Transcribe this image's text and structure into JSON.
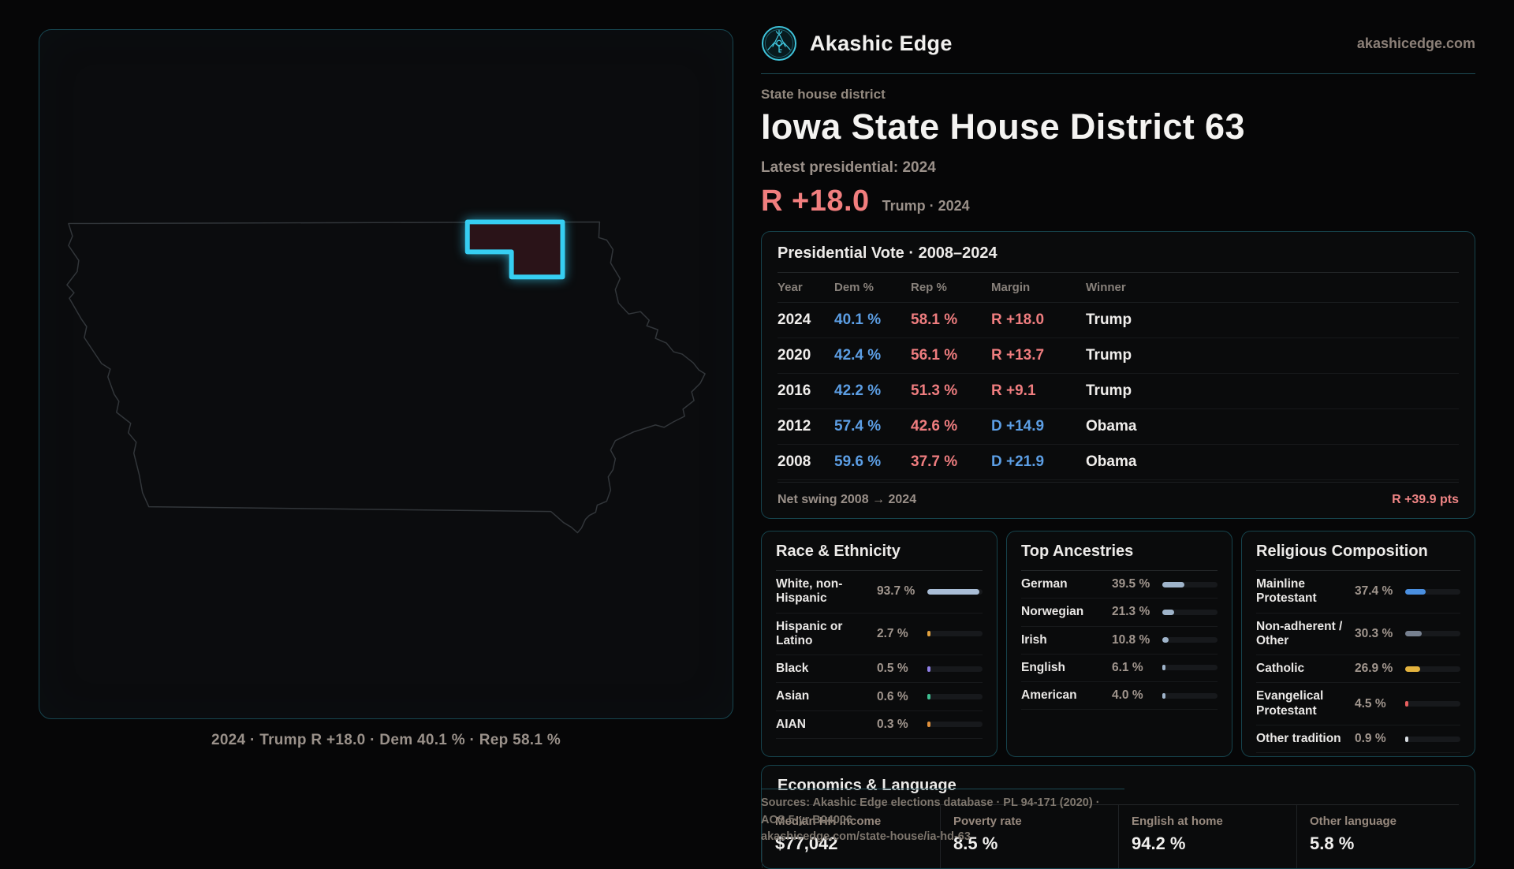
{
  "brand": {
    "name": "Akashic Edge",
    "site": "akashicedge.com"
  },
  "header": {
    "kicker": "State house district",
    "title": "Iowa State House District 63",
    "latest": "Latest presidential: 2024",
    "margin": "R +18.0",
    "margin_context": "Trump · 2024"
  },
  "map": {
    "caption": "2024 · Trump R +18.0 · Dem 40.1 % · Rep 58.1 %"
  },
  "presidential": {
    "title": "Presidential Vote · 2008–2024",
    "columns": [
      "Year",
      "Dem %",
      "Rep %",
      "Margin",
      "Winner"
    ],
    "rows": [
      {
        "year": "2024",
        "dem": "40.1 %",
        "rep": "58.1 %",
        "margin": "R +18.0",
        "margin_party": "R",
        "winner": "Trump"
      },
      {
        "year": "2020",
        "dem": "42.4 %",
        "rep": "56.1 %",
        "margin": "R +13.7",
        "margin_party": "R",
        "winner": "Trump"
      },
      {
        "year": "2016",
        "dem": "42.2 %",
        "rep": "51.3 %",
        "margin": "R +9.1",
        "margin_party": "R",
        "winner": "Trump"
      },
      {
        "year": "2012",
        "dem": "57.4 %",
        "rep": "42.6 %",
        "margin": "D +14.9",
        "margin_party": "D",
        "winner": "Obama"
      },
      {
        "year": "2008",
        "dem": "59.6 %",
        "rep": "37.7 %",
        "margin": "D +21.9",
        "margin_party": "D",
        "winner": "Obama"
      }
    ],
    "net_swing_label": "Net swing 2008 → 2024",
    "net_swing_value": "R +39.9 pts"
  },
  "race": {
    "title": "Race & Ethnicity",
    "rows": [
      {
        "label": "White, non-Hispanic",
        "value": "93.7 %",
        "pct": 93.7,
        "color": "#a9bdd6"
      },
      {
        "label": "Hispanic or Latino",
        "value": "2.7 %",
        "pct": 2.7,
        "color": "#e2a23f"
      },
      {
        "label": "Black",
        "value": "0.5 %",
        "pct": 0.5,
        "color": "#9080e8"
      },
      {
        "label": "Asian",
        "value": "0.6 %",
        "pct": 0.6,
        "color": "#3ec092"
      },
      {
        "label": "AIAN",
        "value": "0.3 %",
        "pct": 0.3,
        "color": "#e0913c"
      }
    ]
  },
  "ancestries": {
    "title": "Top Ancestries",
    "rows": [
      {
        "label": "German",
        "value": "39.5 %",
        "pct": 39.5,
        "color": "#9fb4ca"
      },
      {
        "label": "Norwegian",
        "value": "21.3 %",
        "pct": 21.3,
        "color": "#9fb4ca"
      },
      {
        "label": "Irish",
        "value": "10.8 %",
        "pct": 10.8,
        "color": "#9fb4ca"
      },
      {
        "label": "English",
        "value": "6.1 %",
        "pct": 6.1,
        "color": "#9fb4ca"
      },
      {
        "label": "American",
        "value": "4.0 %",
        "pct": 4.0,
        "color": "#9fb4ca"
      }
    ]
  },
  "religion": {
    "title": "Religious Composition",
    "rows": [
      {
        "label": "Mainline Protestant",
        "value": "37.4 %",
        "pct": 37.4,
        "color": "#4a8fe0"
      },
      {
        "label": "Non-adherent / Other",
        "value": "30.3 %",
        "pct": 30.3,
        "color": "#76808f"
      },
      {
        "label": "Catholic",
        "value": "26.9 %",
        "pct": 26.9,
        "color": "#e3b33e"
      },
      {
        "label": "Evangelical Protestant",
        "value": "4.5 %",
        "pct": 4.5,
        "color": "#e85f5f"
      },
      {
        "label": "Other tradition",
        "value": "0.9 %",
        "pct": 0.9,
        "color": "#d8dde2"
      }
    ]
  },
  "economics": {
    "title": "Economics & Language",
    "stats": [
      {
        "label": "Median HH income",
        "value": "$77,042"
      },
      {
        "label": "Poverty rate",
        "value": "8.5 %"
      },
      {
        "label": "English at home",
        "value": "94.2 %"
      },
      {
        "label": "Other language",
        "value": "5.8 %"
      }
    ]
  },
  "source": {
    "line1": "Sources: Akashic Edge elections database · PL 94-171 (2020) · ACS 5-yr B04006",
    "line2": "akashicedge.com/state-house/ia-hd-63"
  },
  "colors": {
    "dem_blue": "#5c9ee4",
    "rep_red": "#ef7d7f",
    "margin_red": "#f17e7e",
    "district_stroke": "#36cef2",
    "district_fill": "#2a1318",
    "state_outline": "#32363a",
    "panel_border": "#16434c",
    "accent_teal": "#3fc3da"
  }
}
